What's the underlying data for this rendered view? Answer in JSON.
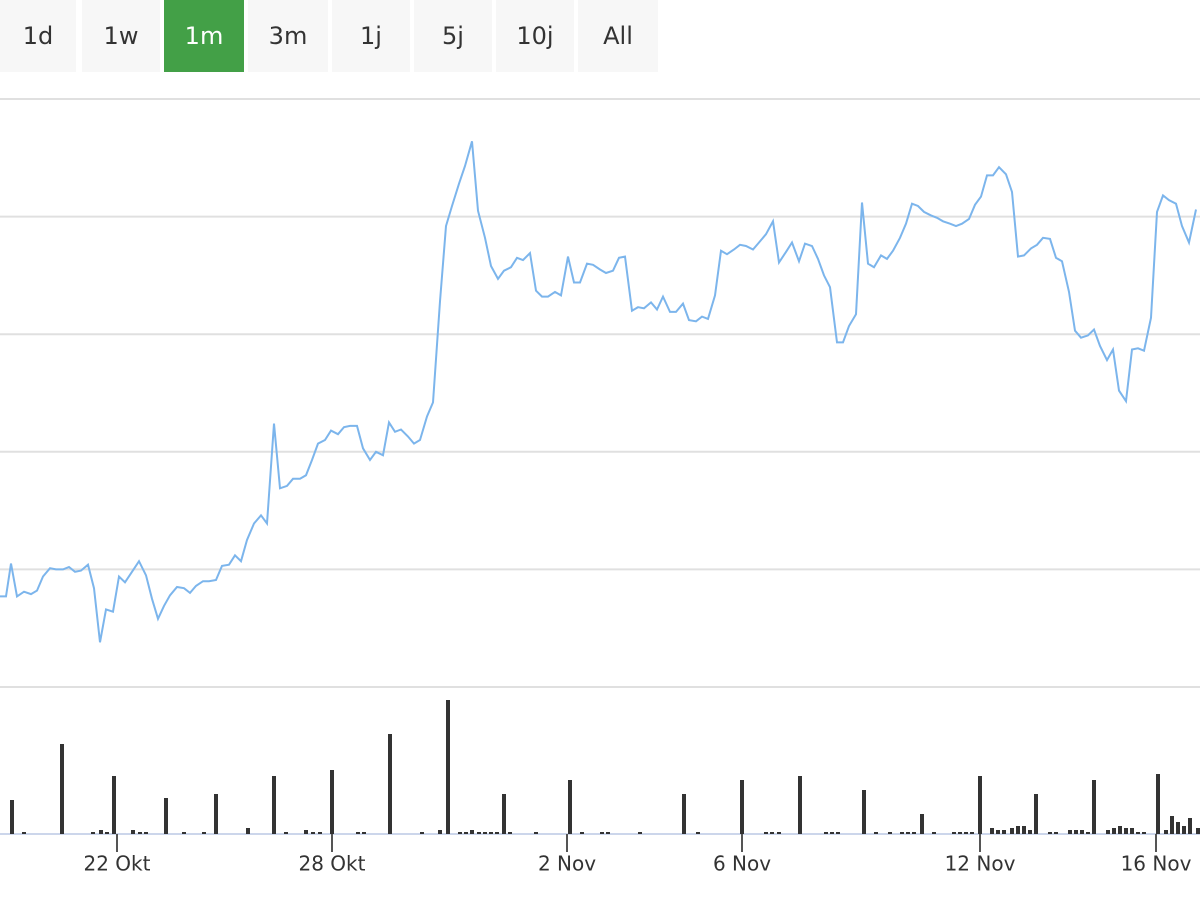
{
  "range_selector": {
    "buttons": [
      "1d",
      "1w",
      "1m",
      "3m",
      "1j",
      "5j",
      "10j",
      "All"
    ],
    "selected": 2
  },
  "chart_data": [
    {
      "type": "line",
      "color": "#7cb5ec",
      "grid": true,
      "xlim": [
        0,
        1200
      ],
      "ylim": [
        0,
        5
      ],
      "yticks": [
        0,
        1,
        2,
        3,
        4,
        5
      ],
      "xticks": [
        {
          "value": 117,
          "label": "22 Okt"
        },
        {
          "value": 332,
          "label": "28 Okt"
        },
        {
          "value": 567,
          "label": "2 Nov"
        },
        {
          "value": 742,
          "label": "6 Nov"
        },
        {
          "value": 980,
          "label": "12 Nov"
        },
        {
          "value": 1156,
          "label": "16 Nov"
        }
      ],
      "x": [
        0,
        6,
        11,
        17,
        24,
        31,
        37,
        43,
        50,
        56,
        63,
        69,
        75,
        81,
        88,
        94,
        100,
        106,
        113,
        119,
        125,
        132,
        139,
        146,
        152,
        158,
        164,
        170,
        177,
        184,
        190,
        196,
        203,
        209,
        216,
        222,
        229,
        235,
        241,
        247,
        254,
        261,
        267,
        274,
        280,
        287,
        293,
        300,
        306,
        312,
        318,
        325,
        331,
        338,
        344,
        350,
        357,
        363,
        370,
        376,
        383,
        389,
        395,
        401,
        408,
        414,
        420,
        427,
        433,
        440,
        446,
        452,
        459,
        465,
        472,
        478,
        485,
        491,
        498,
        504,
        511,
        517,
        523,
        530,
        536,
        542,
        548,
        555,
        561,
        568,
        574,
        580,
        587,
        593,
        600,
        606,
        613,
        619,
        625,
        632,
        638,
        644,
        651,
        657,
        663,
        670,
        676,
        683,
        689,
        696,
        702,
        708,
        715,
        721,
        727,
        734,
        740,
        746,
        753,
        759,
        766,
        773,
        779,
        786,
        792,
        799,
        805,
        812,
        818,
        824,
        830,
        837,
        843,
        849,
        856,
        862,
        868,
        874,
        881,
        887,
        893,
        900,
        906,
        912,
        918,
        924,
        931,
        937,
        943,
        950,
        956,
        962,
        969,
        975,
        981,
        987,
        993,
        999,
        1006,
        1012,
        1018,
        1024,
        1031,
        1037,
        1043,
        1050,
        1056,
        1062,
        1069,
        1075,
        1081,
        1088,
        1094,
        1100,
        1107,
        1113,
        1119,
        1126,
        1132,
        1138,
        1144,
        1151,
        1157,
        1163,
        1169,
        1176,
        1182,
        1189,
        1196
      ],
      "values": [
        0.77,
        0.77,
        1.05,
        0.77,
        0.81,
        0.79,
        0.82,
        0.94,
        1.01,
        1.0,
        1.0,
        1.02,
        0.98,
        0.99,
        1.04,
        0.84,
        0.38,
        0.66,
        0.64,
        0.94,
        0.89,
        0.98,
        1.07,
        0.95,
        0.75,
        0.58,
        0.69,
        0.78,
        0.85,
        0.84,
        0.8,
        0.86,
        0.9,
        0.9,
        0.91,
        1.03,
        1.04,
        1.12,
        1.07,
        1.25,
        1.39,
        1.46,
        1.39,
        2.24,
        1.69,
        1.71,
        1.77,
        1.77,
        1.8,
        1.93,
        2.07,
        2.1,
        2.18,
        2.15,
        2.21,
        2.22,
        2.22,
        2.03,
        1.93,
        2.0,
        1.97,
        2.25,
        2.17,
        2.19,
        2.13,
        2.07,
        2.1,
        2.3,
        2.42,
        3.28,
        3.92,
        4.09,
        4.28,
        4.43,
        4.64,
        4.05,
        3.82,
        3.58,
        3.47,
        3.54,
        3.57,
        3.65,
        3.63,
        3.69,
        3.37,
        3.32,
        3.32,
        3.36,
        3.33,
        3.66,
        3.44,
        3.44,
        3.6,
        3.59,
        3.55,
        3.52,
        3.54,
        3.65,
        3.66,
        3.2,
        3.23,
        3.22,
        3.27,
        3.21,
        3.32,
        3.19,
        3.19,
        3.26,
        3.12,
        3.11,
        3.15,
        3.13,
        3.33,
        3.71,
        3.68,
        3.72,
        3.76,
        3.75,
        3.72,
        3.78,
        3.85,
        3.96,
        3.61,
        3.7,
        3.78,
        3.62,
        3.77,
        3.75,
        3.64,
        3.5,
        3.4,
        2.93,
        2.93,
        3.07,
        3.17,
        4.12,
        3.6,
        3.57,
        3.67,
        3.64,
        3.71,
        3.82,
        3.94,
        4.11,
        4.09,
        4.04,
        4.01,
        3.99,
        3.96,
        3.94,
        3.92,
        3.94,
        3.98,
        4.1,
        4.17,
        4.35,
        4.35,
        4.42,
        4.36,
        4.21,
        3.66,
        3.67,
        3.73,
        3.76,
        3.82,
        3.81,
        3.65,
        3.62,
        3.36,
        3.03,
        2.97,
        2.99,
        3.04,
        2.9,
        2.78,
        2.87,
        2.52,
        2.43,
        2.87,
        2.88,
        2.86,
        3.14,
        4.04,
        4.18,
        4.14,
        4.11,
        3.92,
        3.78,
        4.06
      ]
    },
    {
      "type": "bar",
      "color": "#333333",
      "xlim": [
        0,
        1200
      ],
      "ylim": [
        0,
        150
      ],
      "x": [
        12,
        24,
        62,
        93,
        101,
        107,
        114,
        133,
        140,
        146,
        166,
        184,
        204,
        216,
        248,
        274,
        286,
        306,
        313,
        320,
        332,
        358,
        364,
        390,
        422,
        440,
        448,
        460,
        466,
        472,
        479,
        485,
        491,
        497,
        504,
        510,
        536,
        570,
        582,
        602,
        608,
        640,
        684,
        698,
        742,
        766,
        772,
        779,
        800,
        826,
        832,
        838,
        864,
        876,
        890,
        902,
        908,
        914,
        922,
        934,
        954,
        960,
        966,
        972,
        980,
        992,
        998,
        1004,
        1012,
        1018,
        1024,
        1030,
        1036,
        1050,
        1056,
        1070,
        1076,
        1082,
        1088,
        1094,
        1108,
        1114,
        1120,
        1126,
        1132,
        1138,
        1144,
        1158,
        1166,
        1172,
        1178,
        1184,
        1190,
        1198
      ],
      "values": [
        34,
        2,
        90,
        2,
        4,
        2,
        58,
        4,
        2,
        2,
        36,
        2,
        2,
        40,
        6,
        58,
        2,
        4,
        2,
        2,
        64,
        2,
        2,
        100,
        2,
        4,
        134,
        2,
        2,
        4,
        2,
        2,
        2,
        2,
        40,
        2,
        2,
        54,
        2,
        2,
        2,
        2,
        40,
        2,
        54,
        2,
        2,
        2,
        58,
        2,
        2,
        2,
        44,
        2,
        2,
        2,
        2,
        2,
        20,
        2,
        2,
        2,
        2,
        2,
        58,
        6,
        4,
        4,
        6,
        8,
        8,
        4,
        40,
        2,
        2,
        4,
        4,
        4,
        2,
        54,
        4,
        6,
        8,
        6,
        6,
        2,
        2,
        60,
        4,
        18,
        12,
        8,
        16,
        6
      ]
    }
  ]
}
